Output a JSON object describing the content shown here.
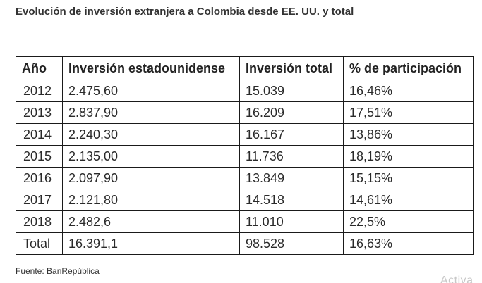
{
  "title": "Evolución de inversión extranjera a Colombia desde EE. UU. y total",
  "table": {
    "headers": [
      "Año",
      "Inversión estadounidense",
      "Inversión total",
      "% de participación"
    ],
    "rows": [
      [
        "2012",
        "2.475,60",
        "15.039",
        "16,46%"
      ],
      [
        "2013",
        "2.837,90",
        "16.209",
        "17,51%"
      ],
      [
        "2014",
        "2.240,30",
        "16.167",
        "13,86%"
      ],
      [
        "2015",
        "2.135,00",
        "11.736",
        "18,19%"
      ],
      [
        "2016",
        "2.097,90",
        "13.849",
        "15,15%"
      ],
      [
        "2017",
        "2.121,80",
        "14.518",
        "14,61%"
      ],
      [
        "2018",
        "2.482,6",
        "11.010",
        "22,5%"
      ],
      [
        "Total",
        "16.391,1",
        "98.528",
        "16,63%"
      ]
    ]
  },
  "source": "Fuente: BanRepública",
  "watermark": "Activa"
}
